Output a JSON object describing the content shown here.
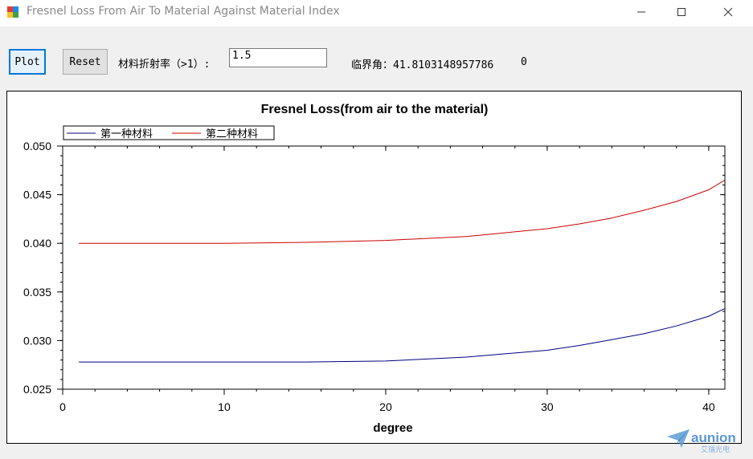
{
  "window": {
    "title": "Fresnel Loss From Air To Material Against Material Index",
    "minimize_glyph": "—",
    "maximize_glyph": "☐",
    "close_glyph": "✕"
  },
  "controls": {
    "plot_label": "Plot",
    "reset_label": "Reset",
    "index_label": "材料折射率（>1）:",
    "index_value": "1.5",
    "critical_angle_text": "临界角：41.8103148957786",
    "extra_value": "0"
  },
  "watermark": {
    "brand": "aunion",
    "subtitle": "艾镭光电"
  },
  "colors": {
    "accent": "#0078d7",
    "series1": "#000080",
    "series2": "#cc0000"
  },
  "chart_data": {
    "type": "line",
    "title": "Fresnel Loss(from air to the material)",
    "xlabel": "degree",
    "ylabel": "",
    "xlim": [
      0,
      41
    ],
    "ylim": [
      0.025,
      0.05
    ],
    "x_ticks": [
      0,
      10,
      20,
      30,
      40
    ],
    "x_tick_labels": [
      "0",
      "10",
      "20",
      "30",
      "40"
    ],
    "y_ticks": [
      0.025,
      0.03,
      0.035,
      0.04,
      0.045,
      0.05
    ],
    "y_tick_labels": [
      "0.025",
      "0.030",
      "0.035",
      "0.040",
      "0.045",
      "0.050"
    ],
    "grid": false,
    "legend_position": "top-left",
    "series": [
      {
        "name": "第一种材料",
        "color": "#000080",
        "x": [
          1,
          5,
          10,
          15,
          20,
          25,
          30,
          32,
          34,
          36,
          38,
          40,
          41
        ],
        "y": [
          0.0278,
          0.0278,
          0.0278,
          0.0278,
          0.0279,
          0.0283,
          0.029,
          0.0295,
          0.0301,
          0.0307,
          0.0315,
          0.0325,
          0.0333
        ]
      },
      {
        "name": "第二种材料",
        "color": "#cc0000",
        "x": [
          1,
          5,
          10,
          15,
          20,
          25,
          30,
          32,
          34,
          36,
          38,
          40,
          41
        ],
        "y": [
          0.04,
          0.04,
          0.04,
          0.0401,
          0.0403,
          0.0407,
          0.0415,
          0.042,
          0.0426,
          0.0434,
          0.0443,
          0.0455,
          0.0465
        ]
      }
    ]
  }
}
